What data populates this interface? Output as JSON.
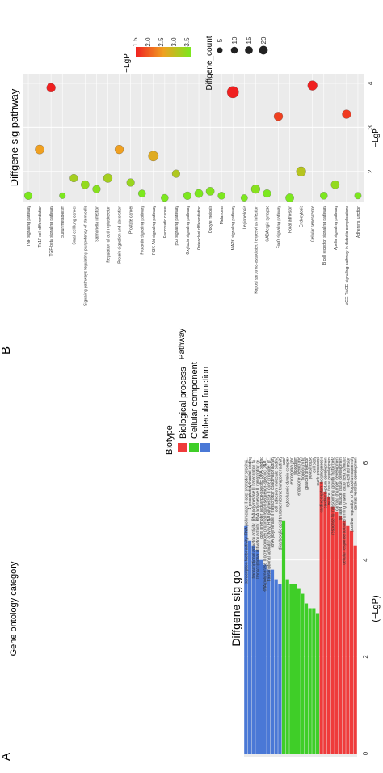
{
  "panels": {
    "a": "A",
    "b": "B"
  },
  "go": {
    "title": "Diffgene sig go",
    "xlabel": "(−LgP)",
    "ylabel": "Gene ontology category",
    "legend_title": "Biotype",
    "legend_items": [
      {
        "name": "Biological process",
        "color": "#ef3b3b"
      },
      {
        "name": "Cellular component",
        "color": "#3fce28"
      },
      {
        "name": "Molecular function",
        "color": "#4a78d6"
      }
    ]
  },
  "pathway": {
    "title": "Diffgene sig pathway",
    "xlabel": "−LgP",
    "ylabel": "Pathway",
    "color_legend_title": "−LgP",
    "size_legend_title": "Diffgene_count",
    "size_legend_labels": [
      "5",
      "10",
      "15",
      "20"
    ],
    "color_scale": {
      "low": "#7ce81e",
      "high": "#f02020",
      "min": 1.5,
      "max": 3.5
    }
  },
  "chart_data": [
    {
      "type": "bar",
      "title": "Diffgene sig go",
      "xlabel": "(−LgP)",
      "ylabel": "Gene ontology category",
      "ylim": [
        0,
        6
      ],
      "ticks": [
        "0",
        "2",
        "4",
        "6"
      ],
      "legend": "right",
      "categories": [
        "transcription factor activity, RNA polymerase II core promoter proxima...",
        "1-phosphatidylinositol binding",
        "transcriptional activator activity, RNA polymerase II transcription fa...",
        "transcriptional activator activity, RNA polymerase II transcription re...",
        "core promoter sequence-specific DNA binding",
        "RNA polymerase II core promoter proximal region sequence-specific DNA ...",
        "transcriptional activator activity, RNA polymerase II core promoter pr...",
        "RNA polymerase II transcription coactivator activity",
        "cell adhesion molecule binding",
        "dicarboxylic acid transmembrane transporter activity",
        "axon",
        "cytoplasmic dynein complex",
        "endosomal part",
        "filopodium",
        "endosome membrane",
        "filopodium tip",
        "glial cell projection",
        "postsynapse",
        "cell body",
        "early endosome",
        "cardiac septum morphogenesis",
        "cardiac septum development",
        "muscle tissue development",
        "response to transforming growth factor beta",
        "cardiac chamber development",
        "striated muscle tissue development",
        "cellular response to transforming growth factor beta stimulus",
        "cell-cell adhesion",
        "positive regulation of filopodium assembly",
        "cardiac ventricle development"
      ],
      "values": [
        4.7,
        4.4,
        4.3,
        4.2,
        4.0,
        3.9,
        3.8,
        3.8,
        3.6,
        3.5,
        4.8,
        3.6,
        3.5,
        3.5,
        3.4,
        3.3,
        3.1,
        3.0,
        3.0,
        2.9,
        5.6,
        5.4,
        5.3,
        5.1,
        5.0,
        4.9,
        4.8,
        4.7,
        4.6,
        4.3
      ],
      "biotype": [
        "Molecular function",
        "Molecular function",
        "Molecular function",
        "Molecular function",
        "Molecular function",
        "Molecular function",
        "Molecular function",
        "Molecular function",
        "Molecular function",
        "Molecular function",
        "Cellular component",
        "Cellular component",
        "Cellular component",
        "Cellular component",
        "Cellular component",
        "Cellular component",
        "Cellular component",
        "Cellular component",
        "Cellular component",
        "Cellular component",
        "Biological process",
        "Biological process",
        "Biological process",
        "Biological process",
        "Biological process",
        "Biological process",
        "Biological process",
        "Biological process",
        "Biological process",
        "Biological process"
      ]
    },
    {
      "type": "scatter",
      "title": "Diffgene sig pathway",
      "xlabel": "−LgP",
      "ylabel": "Pathway",
      "xlim": [
        1.3,
        4.2
      ],
      "ticks": [
        "2",
        "3",
        "4"
      ],
      "grid": true,
      "legend": "top",
      "categories": [
        "TNF signaling pathway",
        "Th17 cell differentiation",
        "TGF-beta signaling pathway",
        "Sulfur metabolism",
        "Small cell lung cancer",
        "Signaling pathways regulating pluripotency of stem cells",
        "Salmonella infection",
        "Regulation of actin cytoskeleton",
        "Protein digestion and absorption",
        "Prostate cancer",
        "Prolactin signaling pathway",
        "PI3K-Akt signaling pathway",
        "Pancreatic cancer",
        "p53 signaling pathway",
        "Oxytocin signaling pathway",
        "Osteoclast differentiation",
        "Oocyte meiosis",
        "Melanoma",
        "MAPK signaling pathway",
        "Legionellosis",
        "Kaposi sarcoma-associated herpesvirus infection",
        "GABAergic synapse",
        "FoxO signaling pathway",
        "Focal adhesion",
        "Endocytosis",
        "Cellular senescence",
        "B cell receptor signaling pathway",
        "Apelin signaling pathway",
        "AGE-RAGE signaling pathway in diabetic complications",
        "Adherens junction"
      ],
      "x": [
        1.45,
        2.5,
        3.9,
        1.45,
        1.85,
        1.7,
        1.6,
        1.85,
        2.5,
        1.75,
        1.5,
        2.35,
        1.4,
        1.95,
        1.45,
        1.5,
        1.55,
        1.45,
        3.8,
        1.4,
        1.6,
        1.5,
        3.25,
        1.4,
        2.0,
        3.95,
        1.45,
        1.7,
        3.3,
        1.45
      ],
      "count": [
        6,
        9,
        8,
        3,
        6,
        7,
        6,
        8,
        8,
        6,
        5,
        11,
        5,
        6,
        6,
        7,
        7,
        5,
        16,
        4,
        8,
        6,
        8,
        7,
        10,
        10,
        5,
        7,
        8,
        4
      ],
      "color_scale": "-LgP 1.5 (green) to 3.5 (red)",
      "color_legend_ticks": [
        "1.5",
        "2.0",
        "2.5",
        "3.0",
        "3.5"
      ],
      "size_legend_values": [
        5,
        10,
        15,
        20
      ]
    }
  ]
}
